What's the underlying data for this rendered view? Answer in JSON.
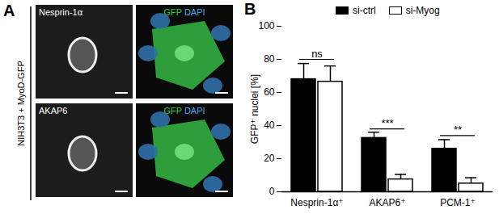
{
  "panel_a": {
    "label": "A",
    "side_label": "NIH3T3 + MyoD-GFP",
    "rows": [
      {
        "marker": "Nesprin-1α",
        "channels": [
          "GFP",
          "DAPI"
        ]
      },
      {
        "marker": "AKAP6",
        "channels": [
          "GFP",
          "DAPI"
        ]
      }
    ]
  },
  "chart_data": {
    "type": "bar",
    "title": "B",
    "categories": [
      "Nesprin-1α⁺",
      "AKAP6⁺",
      "PCM-1⁺"
    ],
    "series": [
      {
        "name": "si-ctrl",
        "color": "#000000",
        "values": [
          68,
          32.5,
          26
        ],
        "errors": [
          9.5,
          3.5,
          5.5
        ]
      },
      {
        "name": "si-Myog",
        "color": "#ffffff",
        "values": [
          66.5,
          7.5,
          5
        ],
        "errors": [
          9.5,
          3,
          3.5
        ]
      }
    ],
    "y_label": "GFP⁺ nuclei [%]",
    "ylim": [
      0,
      100
    ],
    "yticks": [
      0,
      20,
      40,
      60,
      80,
      100
    ],
    "legend": "top",
    "significance": [
      {
        "category": "Nesprin-1α⁺",
        "label": "ns",
        "y": 80
      },
      {
        "category": "AKAP6⁺",
        "label": "***",
        "y": 38
      },
      {
        "category": "PCM-1⁺",
        "label": "**",
        "y": 34
      }
    ]
  }
}
